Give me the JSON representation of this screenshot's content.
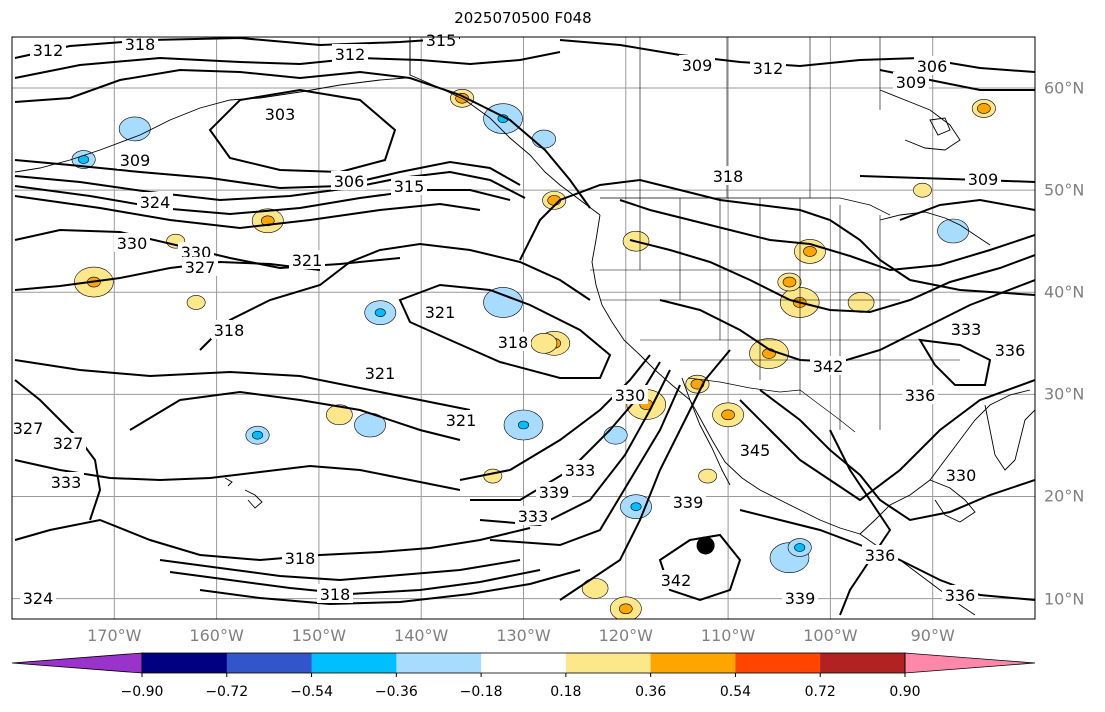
{
  "title": "2025070500 F048",
  "map": {
    "projection": "PlateCarree",
    "extent_lon": [
      -180,
      -80
    ],
    "extent_lat": [
      8,
      65
    ],
    "gridlines": true,
    "features": [
      "coastlines",
      "country-borders",
      "us-state-borders"
    ],
    "lon_labels": [
      "170°W",
      "160°W",
      "150°W",
      "140°W",
      "130°W",
      "120°W",
      "110°W",
      "100°W",
      "90°W"
    ],
    "lat_labels": [
      "60°N",
      "50°N",
      "40°N",
      "30°N",
      "20°N",
      "10°N"
    ],
    "marker": {
      "label": "",
      "lon": -112.2,
      "lat": 15.2
    }
  },
  "contours": {
    "color": "#000000",
    "labels": [
      "312",
      "318",
      "315",
      "312",
      "309",
      "312",
      "306",
      "303",
      "309",
      "303",
      "309",
      "306",
      "315",
      "318",
      "309",
      "324",
      "330",
      "330",
      "327",
      "321",
      "321",
      "318",
      "321",
      "318",
      "321",
      "318",
      "333",
      "342",
      "339",
      "327",
      "327",
      "333",
      "333",
      "330",
      "339",
      "342",
      "318",
      "336",
      "339",
      "330",
      "336",
      "333",
      "336",
      "345",
      "324",
      "336"
    ]
  },
  "colorbar": {
    "ticks": [
      "−0.90",
      "−0.72",
      "−0.54",
      "−0.36",
      "−0.18",
      "0.18",
      "0.36",
      "0.54",
      "0.72",
      "0.90"
    ],
    "colors": [
      "#9933cc",
      "#000080",
      "#3355cc",
      "#00bfff",
      "#a8dcff",
      "#ffffff",
      "#fce78a",
      "#ffa500",
      "#ff4500",
      "#b22222",
      "#ff88aa"
    ],
    "extend": "both"
  },
  "shading": {
    "blue_areas": [
      [
        -173,
        53
      ],
      [
        -168,
        56
      ],
      [
        -132,
        57
      ],
      [
        -128,
        55
      ],
      [
        -144,
        38
      ],
      [
        -132,
        39
      ],
      [
        -156,
        26
      ],
      [
        -145,
        27
      ],
      [
        -130,
        27
      ],
      [
        -121,
        26
      ],
      [
        -119,
        19
      ],
      [
        -104,
        14
      ],
      [
        -103,
        15
      ],
      [
        -88,
        46
      ]
    ],
    "orange_areas": [
      [
        -136,
        59
      ],
      [
        -155,
        47
      ],
      [
        -172,
        41
      ],
      [
        -127,
        49
      ],
      [
        -127,
        35
      ],
      [
        -118,
        29
      ],
      [
        -113,
        31
      ],
      [
        -110,
        28
      ],
      [
        -103,
        39
      ],
      [
        -104,
        41
      ],
      [
        -102,
        44
      ],
      [
        -106,
        34
      ],
      [
        -85,
        58
      ],
      [
        -120,
        9
      ]
    ],
    "yellow_areas": [
      [
        -164,
        45
      ],
      [
        -128,
        35
      ],
      [
        -133,
        22
      ],
      [
        -123,
        11
      ],
      [
        -112,
        22
      ],
      [
        -148,
        28
      ],
      [
        -162,
        39
      ],
      [
        -97,
        39
      ],
      [
        -91,
        50
      ],
      [
        -119,
        45
      ]
    ]
  }
}
